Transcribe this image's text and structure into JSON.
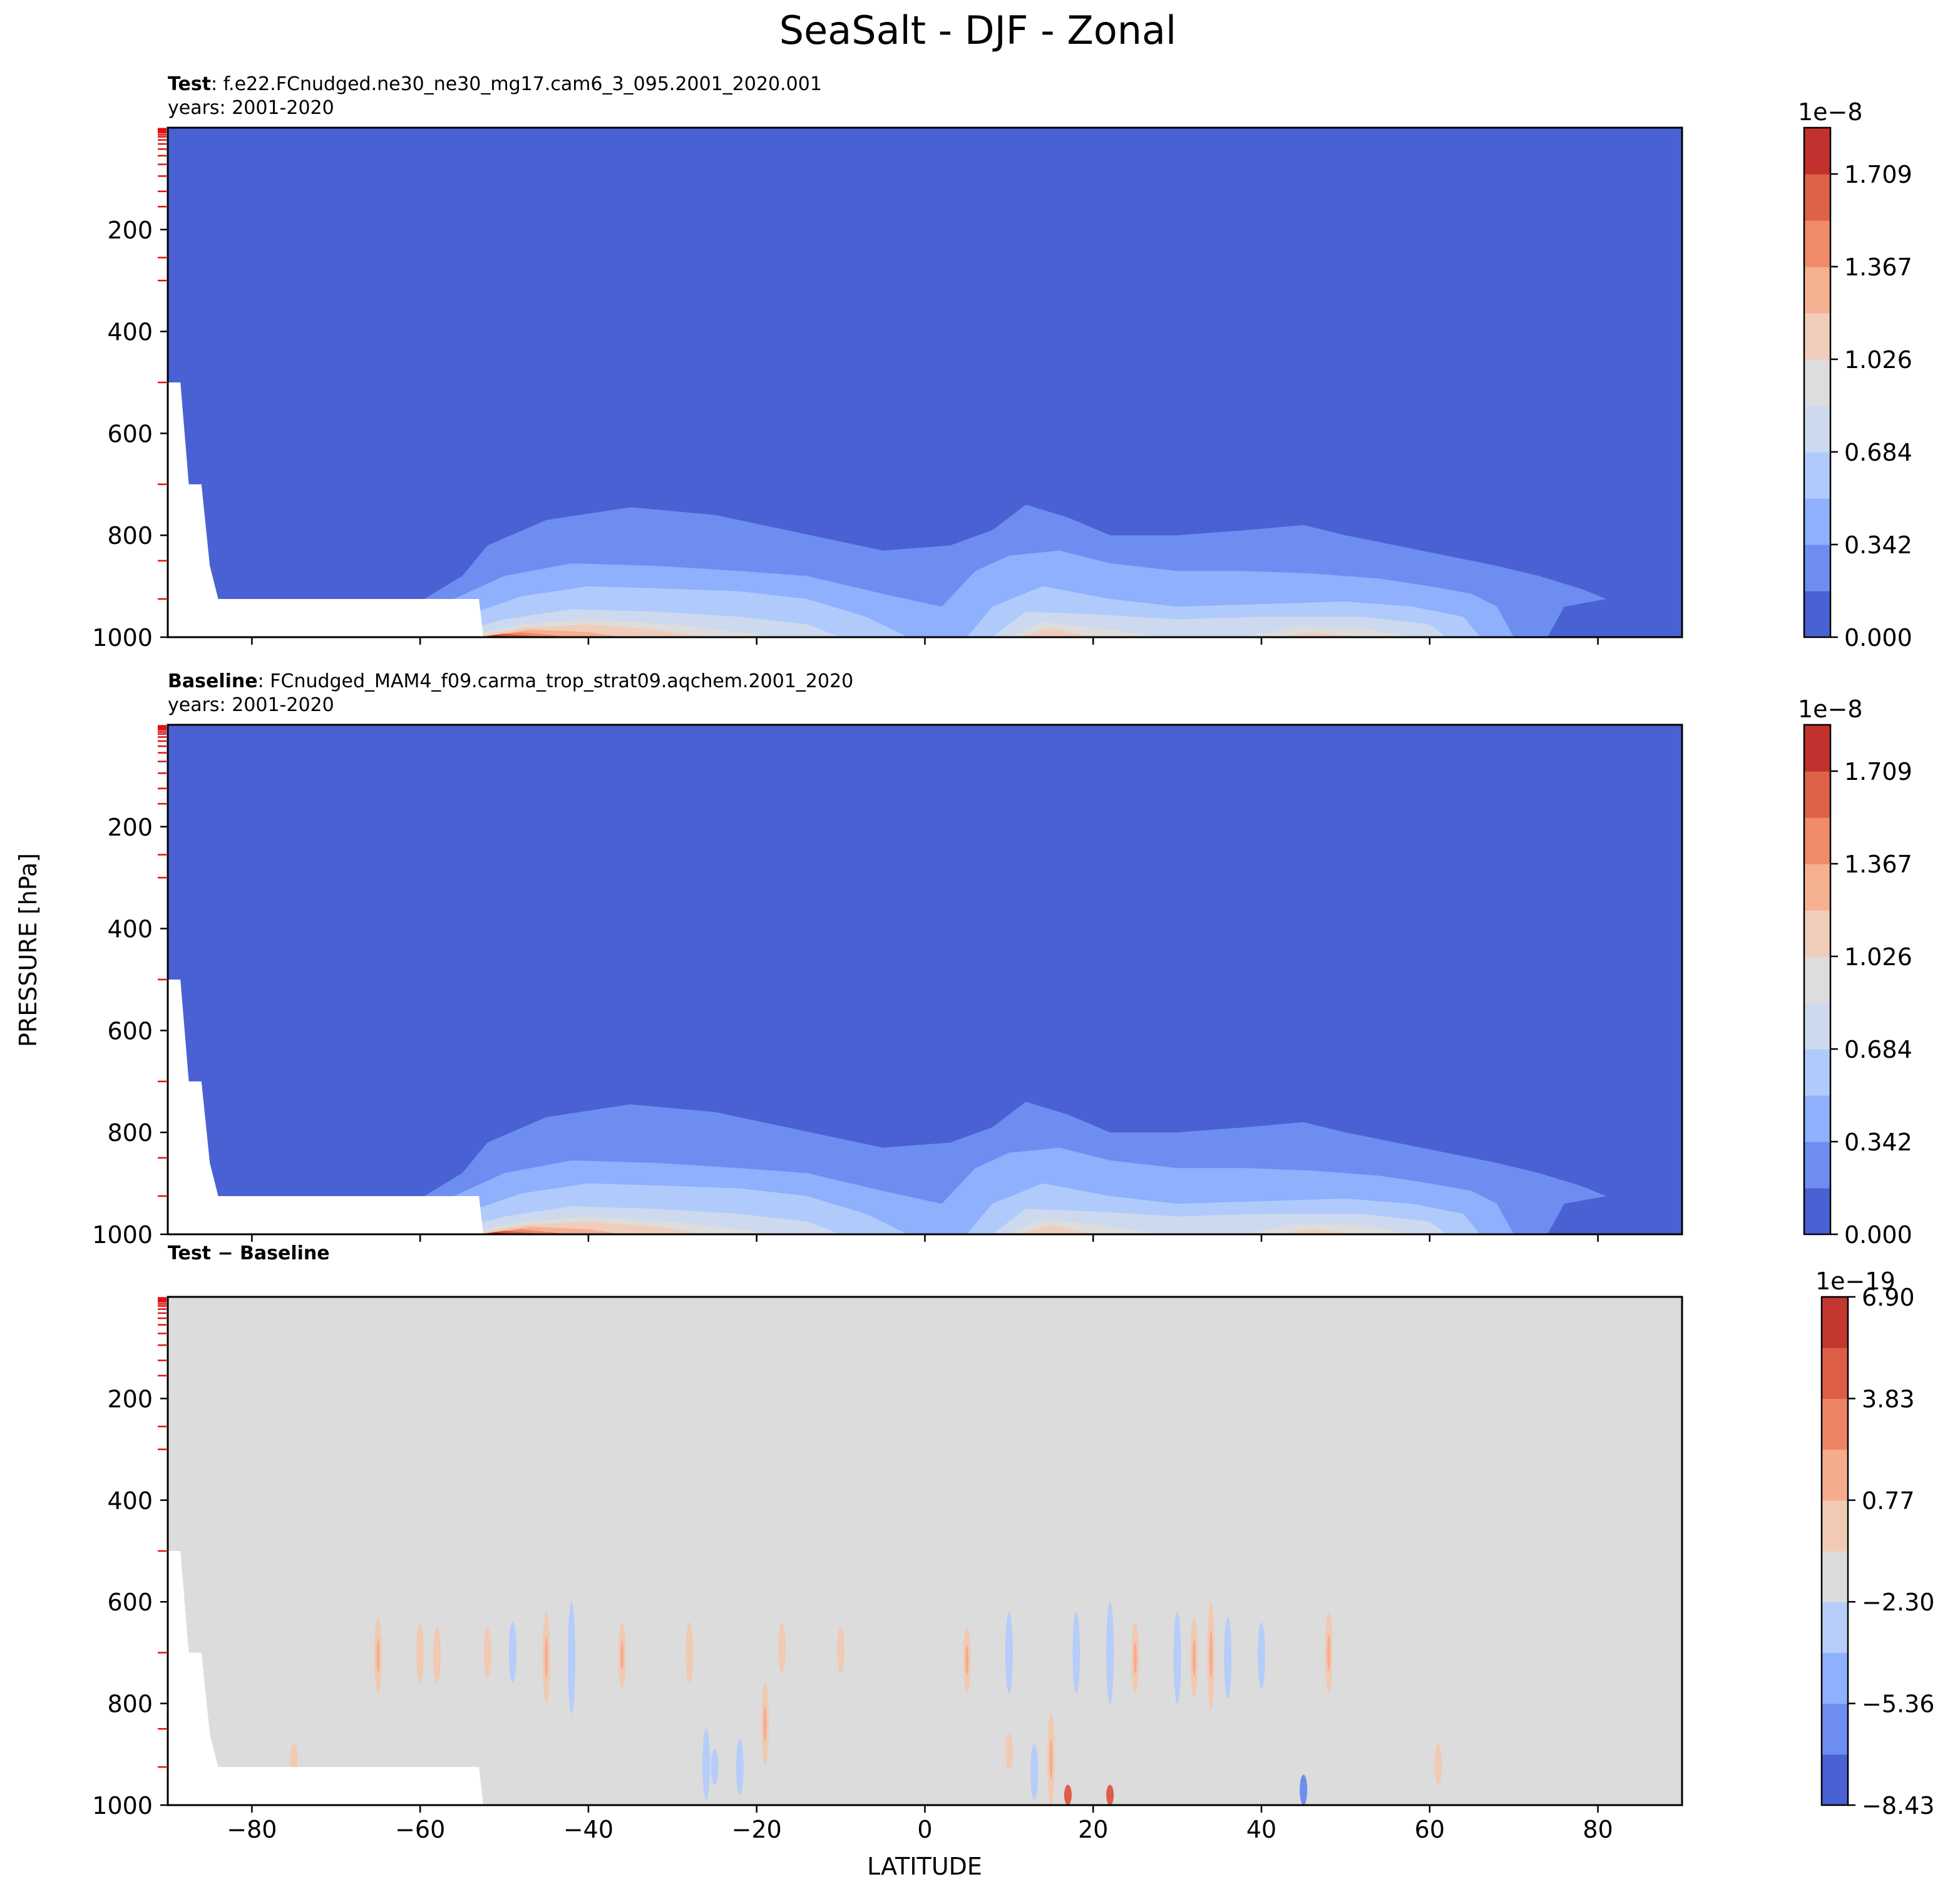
{
  "figure": {
    "title": "SeaSalt - DJF - Zonal",
    "ylabel": "PRESSURE [hPa]",
    "xlabel": "LATITUDE"
  },
  "colors": {
    "background": "#ffffff",
    "deep_blue": "#4a61d4",
    "neutral_gray": "#dcdcdc",
    "topography_mask": "#ffffff",
    "tick_marker": "#e01010"
  },
  "panels": [
    {
      "id": "test",
      "label_bold": "Test",
      "label_rest": ": f.e22.FCnudged.ne30_ne30_mg17.cam6_3_095.2001_2020.001",
      "subtitle": "years: 2001-2020",
      "colorbar_exponent": "1e−8",
      "colorbar_ticks": [
        "0.000",
        "0.342",
        "0.684",
        "1.026",
        "1.367",
        "1.709"
      ]
    },
    {
      "id": "baseline",
      "label_bold": "Baseline",
      "label_rest": ": FCnudged_MAM4_f09.carma_trop_strat09.aqchem.2001_2020",
      "subtitle": "years: 2001-2020",
      "colorbar_exponent": "1e−8",
      "colorbar_ticks": [
        "0.000",
        "0.342",
        "0.684",
        "1.026",
        "1.367",
        "1.709"
      ]
    },
    {
      "id": "diff",
      "label_bold": "Test − Baseline",
      "label_rest": "",
      "subtitle": "",
      "colorbar_exponent": "1e−19",
      "colorbar_ticks": [
        "−8.43",
        "−5.36",
        "−2.30",
        "0.77",
        "3.83",
        "6.90"
      ]
    }
  ],
  "chart_data": [
    {
      "type": "heatmap",
      "title": "Test",
      "xlim": [
        -90,
        90
      ],
      "ylim": [
        1000,
        0
      ],
      "x_ticks": [
        "−80",
        "−60",
        "−40",
        "−20",
        "0",
        "20",
        "40",
        "60",
        "80"
      ],
      "y_ticks": [
        "200",
        "400",
        "600",
        "800",
        "1000"
      ],
      "colorbar_levels": [
        "0.000",
        "0.342",
        "0.684",
        "1.026",
        "1.367",
        "1.709"
      ],
      "colorbar_scale": "1e-8",
      "colormap": "coolwarm",
      "surface_maxima": [
        {
          "lat": -50,
          "pressure": 1000,
          "value_1e8": 1.8
        },
        {
          "lat": 12,
          "pressure": 1000,
          "value_1e8": 1.1
        },
        {
          "lat": 45,
          "pressure": 1000,
          "value_1e8": 1.1
        }
      ]
    },
    {
      "type": "heatmap",
      "title": "Baseline",
      "xlim": [
        -90,
        90
      ],
      "ylim": [
        1000,
        0
      ],
      "x_ticks": [
        "−80",
        "−60",
        "−40",
        "−20",
        "0",
        "20",
        "40",
        "60",
        "80"
      ],
      "y_ticks": [
        "200",
        "400",
        "600",
        "800",
        "1000"
      ],
      "colorbar_levels": [
        "0.000",
        "0.342",
        "0.684",
        "1.026",
        "1.367",
        "1.709"
      ],
      "colorbar_scale": "1e-8",
      "colormap": "coolwarm",
      "surface_maxima": [
        {
          "lat": -50,
          "pressure": 1000,
          "value_1e8": 1.8
        },
        {
          "lat": 12,
          "pressure": 1000,
          "value_1e8": 1.1
        },
        {
          "lat": 45,
          "pressure": 1000,
          "value_1e8": 1.1
        }
      ]
    },
    {
      "type": "heatmap",
      "title": "Test − Baseline",
      "xlim": [
        -90,
        90
      ],
      "ylim": [
        1000,
        0
      ],
      "x_ticks": [
        "−80",
        "−60",
        "−40",
        "−20",
        "0",
        "20",
        "40",
        "60",
        "80"
      ],
      "y_ticks": [
        "200",
        "400",
        "600",
        "800",
        "1000"
      ],
      "colorbar_levels": [
        "−8.43",
        "−5.36",
        "−2.30",
        "0.77",
        "3.83",
        "6.90"
      ],
      "colorbar_scale": "1e-19",
      "colormap": "coolwarm",
      "diff_features": [
        {
          "lat": -75,
          "pmin": 880,
          "pmax": 940,
          "sign": 1
        },
        {
          "lat": -65,
          "pmin": 630,
          "pmax": 780,
          "sign": 1
        },
        {
          "lat": -60,
          "pmin": 640,
          "pmax": 760,
          "sign": 1
        },
        {
          "lat": -58,
          "pmin": 650,
          "pmax": 760,
          "sign": 1
        },
        {
          "lat": -52,
          "pmin": 650,
          "pmax": 750,
          "sign": 1
        },
        {
          "lat": -49,
          "pmin": 640,
          "pmax": 760,
          "sign": -1
        },
        {
          "lat": -45,
          "pmin": 620,
          "pmax": 800,
          "sign": 1
        },
        {
          "lat": -42,
          "pmin": 600,
          "pmax": 820,
          "sign": -1
        },
        {
          "lat": -36,
          "pmin": 640,
          "pmax": 770,
          "sign": 1
        },
        {
          "lat": -28,
          "pmin": 640,
          "pmax": 760,
          "sign": 1
        },
        {
          "lat": -26,
          "pmin": 850,
          "pmax": 990,
          "sign": -1
        },
        {
          "lat": -25,
          "pmin": 890,
          "pmax": 960,
          "sign": -1
        },
        {
          "lat": -22,
          "pmin": 870,
          "pmax": 980,
          "sign": -1
        },
        {
          "lat": -19,
          "pmin": 760,
          "pmax": 920,
          "sign": 1
        },
        {
          "lat": -17,
          "pmin": 640,
          "pmax": 740,
          "sign": 1
        },
        {
          "lat": -10,
          "pmin": 650,
          "pmax": 740,
          "sign": 1
        },
        {
          "lat": 5,
          "pmin": 650,
          "pmax": 780,
          "sign": 1
        },
        {
          "lat": 10,
          "pmin": 860,
          "pmax": 930,
          "sign": 1
        },
        {
          "lat": 10,
          "pmin": 620,
          "pmax": 780,
          "sign": -1
        },
        {
          "lat": 13,
          "pmin": 880,
          "pmax": 990,
          "sign": -1
        },
        {
          "lat": 15,
          "pmin": 820,
          "pmax": 1000,
          "sign": 1
        },
        {
          "lat": 17,
          "pmin": 960,
          "pmax": 1000,
          "sign": 2
        },
        {
          "lat": 18,
          "pmin": 620,
          "pmax": 780,
          "sign": -1
        },
        {
          "lat": 22,
          "pmin": 600,
          "pmax": 800,
          "sign": -1
        },
        {
          "lat": 22,
          "pmin": 960,
          "pmax": 1000,
          "sign": 2
        },
        {
          "lat": 25,
          "pmin": 640,
          "pmax": 780,
          "sign": 1
        },
        {
          "lat": 30,
          "pmin": 620,
          "pmax": 800,
          "sign": -1
        },
        {
          "lat": 32,
          "pmin": 630,
          "pmax": 790,
          "sign": 1
        },
        {
          "lat": 34,
          "pmin": 600,
          "pmax": 810,
          "sign": 1
        },
        {
          "lat": 36,
          "pmin": 630,
          "pmax": 790,
          "sign": -1
        },
        {
          "lat": 40,
          "pmin": 640,
          "pmax": 770,
          "sign": -1
        },
        {
          "lat": 45,
          "pmin": 940,
          "pmax": 1000,
          "sign": -2
        },
        {
          "lat": 48,
          "pmin": 620,
          "pmax": 780,
          "sign": 1
        },
        {
          "lat": 61,
          "pmin": 880,
          "pmax": 960,
          "sign": 1
        }
      ]
    }
  ]
}
